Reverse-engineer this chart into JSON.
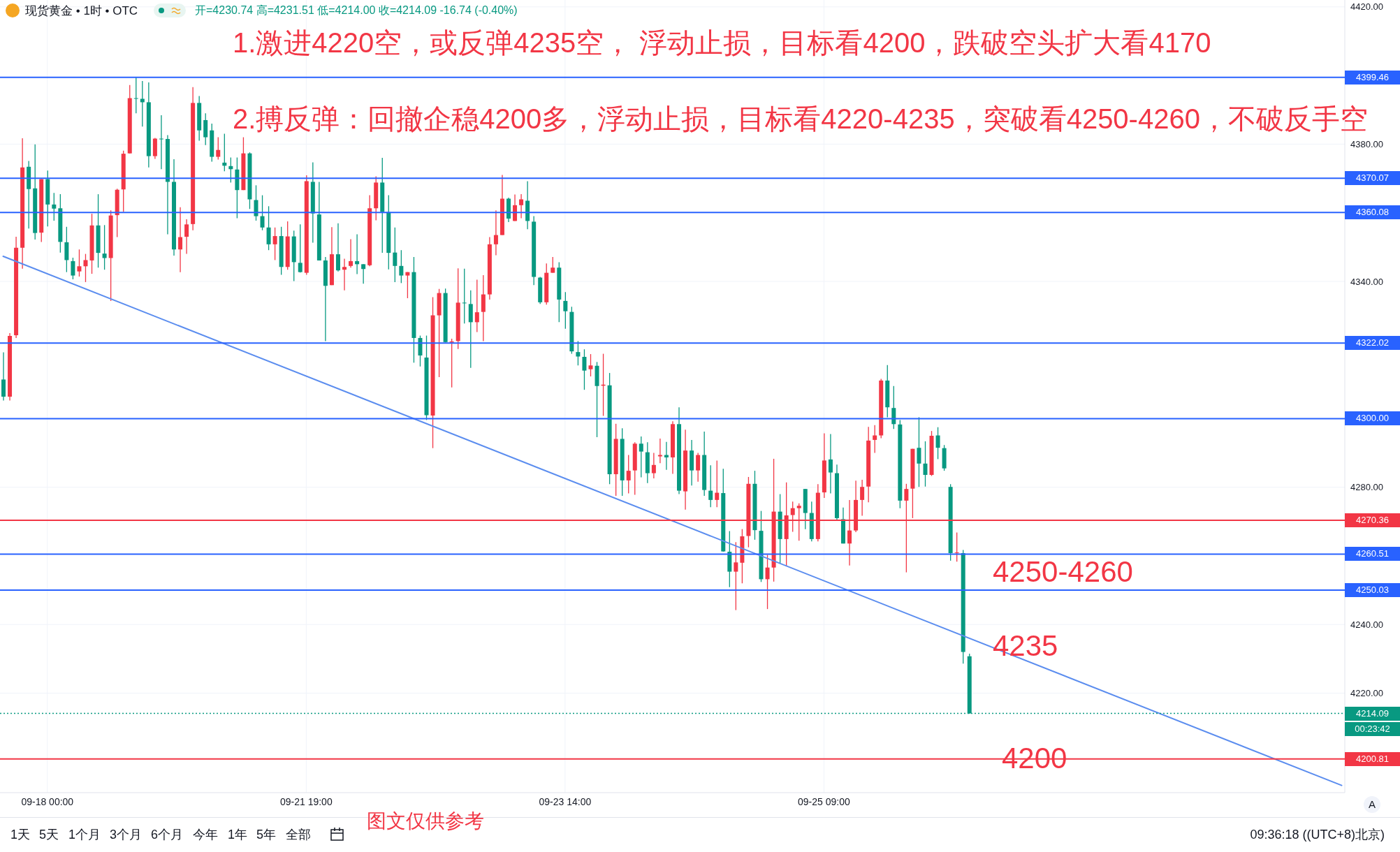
{
  "chart_data": {
    "type": "candlestick",
    "title": "现货黄金 • 1时 • OTC",
    "subtitle": "开=4230.74 高=4231.51 低=4214.00 收=4214.09 -16.74 (-0.40%)",
    "categories": [
      null,
      null,
      null,
      null,
      null,
      null,
      null,
      "09-18 00:00",
      null,
      null,
      null,
      null,
      null,
      null,
      null,
      null,
      null,
      null,
      null,
      null,
      null,
      null,
      null,
      null,
      null,
      null,
      null,
      null,
      null,
      null,
      null,
      null,
      null,
      null,
      null,
      null,
      null,
      null,
      null,
      null,
      null,
      null,
      null,
      null,
      null,
      null,
      null,
      null,
      "09-21 19:00",
      null,
      null,
      null,
      null,
      null,
      null,
      null,
      null,
      null,
      null,
      null,
      null,
      null,
      null,
      null,
      null,
      null,
      null,
      null,
      null,
      null,
      null,
      null,
      null,
      null,
      null,
      null,
      null,
      null,
      null,
      null,
      null,
      null,
      null,
      null,
      null,
      null,
      null,
      null,
      null,
      "09-23 14:00",
      null,
      null,
      null,
      null,
      null,
      null,
      null,
      null,
      null,
      null,
      null,
      null,
      null,
      null,
      null,
      null,
      null,
      null,
      null,
      null,
      null,
      null,
      null,
      null,
      null,
      null,
      null,
      null,
      null,
      null,
      null,
      null,
      null,
      null,
      null,
      null,
      null,
      null,
      null,
      null,
      "09-25 09:00",
      null,
      null,
      null,
      null,
      null,
      null,
      null,
      null,
      null,
      null,
      null,
      null,
      null,
      null,
      null,
      null,
      null,
      null,
      null,
      null,
      null,
      null,
      null,
      null,
      null,
      null,
      null,
      null,
      null,
      null,
      null,
      null,
      null,
      null,
      null,
      null,
      null,
      null,
      null,
      null,
      null,
      null,
      null,
      null,
      null,
      null,
      null,
      null,
      null,
      null,
      null,
      null,
      null,
      null,
      null,
      null,
      null,
      null,
      null,
      null,
      null,
      null,
      null,
      null,
      null,
      null,
      null,
      null,
      null,
      null,
      null,
      null,
      null,
      null,
      null,
      null,
      null,
      null,
      null,
      null,
      null,
      null
    ],
    "series": [
      {
        "type": "candlestick",
        "color": "#f23645",
        "ohlc": [
          null,
          [
            4306.4,
            4324.9,
            4305.3,
            4324.1
          ],
          [
            4324.3,
            4353.0,
            4323.5,
            4349.8
          ],
          [
            4349.8,
            4381.7,
            4343.7,
            4373.2
          ],
          null,
          null,
          [
            4354.2,
            4369.8,
            4351.5,
            4369.8
          ],
          null,
          null,
          null,
          null,
          null,
          [
            4342.9,
            4349.3,
            4341.4,
            4344.4
          ],
          [
            4344.4,
            4348.0,
            4339.8,
            4346.2
          ],
          [
            4346.1,
            4359.7,
            4342.2,
            4356.3
          ],
          null,
          null,
          [
            4346.8,
            4360.7,
            4334.3,
            4359.2
          ],
          [
            4359.3,
            4367.0,
            4352.9,
            4366.7
          ],
          [
            4366.8,
            4378.1,
            4360.3,
            4377.2
          ],
          [
            4377.3,
            4397.2,
            4377.3,
            4393.4
          ],
          null,
          null,
          null,
          [
            4376.5,
            4381.8,
            4375.7,
            4381.6
          ],
          null,
          null,
          null,
          [
            4349.3,
            4361.6,
            4342.7,
            4352.9
          ],
          [
            4353.0,
            4358.1,
            4348.0,
            4356.6
          ],
          [
            4356.7,
            4396.6,
            4354.9,
            4392.0
          ],
          null,
          null,
          null,
          [
            4376.3,
            4382.0,
            4375.5,
            4378.3
          ],
          null,
          null,
          null,
          [
            4366.6,
            4382.0,
            4366.6,
            4377.3
          ],
          null,
          null,
          null,
          null,
          [
            4350.8,
            4355.7,
            4346.2,
            4353.2
          ],
          null,
          [
            4344.2,
            4357.5,
            4343.4,
            4353.1
          ],
          null,
          null,
          [
            4342.5,
            4370.9,
            4341.9,
            4369.2
          ],
          null,
          null,
          null,
          [
            4338.9,
            4355.8,
            4338.9,
            4347.9
          ],
          null,
          [
            4343.4,
            4346.6,
            4337.4,
            4344.2
          ],
          [
            4344.5,
            4352.3,
            4344.0,
            4345.9
          ],
          null,
          null,
          [
            4344.7,
            4365.1,
            4344.4,
            4361.3
          ],
          [
            4361.3,
            4370.6,
            4357.8,
            4368.8
          ],
          null,
          null,
          null,
          null,
          [
            4341.7,
            4342.7,
            4335.1,
            4342.7
          ],
          null,
          null,
          null,
          [
            4300.9,
            4335.4,
            4291.4,
            4330.1
          ],
          [
            4330.1,
            4337.8,
            4312.1,
            4336.6
          ],
          null,
          [
            4322.2,
            4323.3,
            4309.1,
            4322.5
          ],
          [
            4322.6,
            4343.8,
            4320.3,
            4333.8
          ],
          null,
          null,
          [
            4328.1,
            4340.5,
            4325.2,
            4331.0
          ],
          [
            4331.1,
            4341.8,
            4322.6,
            4336.2
          ],
          [
            4336.2,
            4352.9,
            4334.7,
            4350.8
          ],
          [
            4350.8,
            4360.7,
            4347.6,
            4353.5
          ],
          [
            4353.5,
            4371.0,
            4353.5,
            4364.1
          ],
          null,
          [
            4357.6,
            4365.3,
            4357.6,
            4362.2
          ],
          [
            4362.2,
            4365.4,
            4358.4,
            4363.9
          ],
          null,
          null,
          null,
          [
            4333.9,
            4345.2,
            4333.2,
            4342.5
          ],
          [
            4342.5,
            4347.1,
            4342.5,
            4344.0
          ],
          null,
          null,
          null,
          null,
          null,
          [
            4314.4,
            4318.8,
            4312.3,
            4315.5
          ],
          null,
          [
            4309.6,
            4318.9,
            4300.8,
            4309.9
          ],
          null,
          [
            4283.8,
            4298.5,
            4277.5,
            4294.1
          ],
          null,
          [
            4282.0,
            4289.4,
            4278.2,
            4284.8
          ],
          [
            4284.9,
            4293.1,
            4277.8,
            4292.7
          ],
          null,
          null,
          [
            4284.1,
            4290.0,
            4282.6,
            4286.5
          ],
          [
            4289.0,
            4294.2,
            4287.0,
            4289.4
          ],
          null,
          [
            4288.7,
            4299.2,
            4283.9,
            4298.4
          ],
          null,
          [
            4278.8,
            4296.8,
            4273.5,
            4290.7
          ],
          null,
          [
            4284.9,
            4290.0,
            4281.6,
            4289.4
          ],
          null,
          null,
          [
            4276.3,
            4287.8,
            4274.2,
            4278.4
          ],
          null,
          null,
          [
            4255.4,
            4264.0,
            4244.2,
            4258.1
          ],
          [
            4258.0,
            4267.8,
            4252.0,
            4265.7
          ],
          [
            4265.8,
            4283.0,
            4262.5,
            4281.0
          ],
          null,
          null,
          [
            4253.2,
            4260.3,
            4244.5,
            4256.6
          ],
          [
            4256.6,
            4288.3,
            4252.5,
            4272.9
          ],
          null,
          [
            4264.9,
            4281.4,
            4257.1,
            4271.8
          ],
          [
            4271.9,
            4275.8,
            4267.0,
            4273.9
          ],
          [
            4273.9,
            4275.3,
            4264.4,
            4274.6
          ],
          null,
          null,
          [
            4264.9,
            4280.9,
            4264.2,
            4278.4
          ],
          [
            4278.5,
            4295.7,
            4276.9,
            4287.8
          ],
          null,
          null,
          null,
          [
            4263.6,
            4276.3,
            4257.2,
            4267.4
          ],
          [
            4267.4,
            4281.9,
            4266.9,
            4276.3
          ],
          [
            4276.3,
            4282.2,
            4271.7,
            4280.1
          ],
          [
            4280.2,
            4297.6,
            4275.6,
            4293.6
          ],
          [
            4293.8,
            4298.1,
            4290.0,
            4295.1
          ],
          [
            4295.1,
            4311.6,
            4294.3,
            4311.1
          ],
          null,
          null,
          null,
          [
            4276.1,
            4281.0,
            4255.2,
            4279.5
          ],
          [
            4279.6,
            4291.2,
            4271.0,
            4291.2
          ],
          null,
          null,
          [
            4283.6,
            4296.4,
            4283.3,
            4295.0
          ],
          null,
          null,
          null,
          [
            4260.8,
            4266.8,
            4258.3,
            4261.0
          ],
          null,
          null,
          null,
          null,
          null,
          null,
          null,
          null,
          null,
          null,
          null,
          null,
          null,
          null,
          null,
          null,
          null,
          null,
          null,
          null,
          null,
          null,
          null,
          null,
          null,
          null,
          null,
          null,
          null,
          null,
          null,
          null,
          null,
          null,
          null,
          null,
          null,
          null,
          null,
          null,
          null,
          null,
          null,
          null,
          null,
          null,
          null,
          null,
          null,
          null,
          null,
          null,
          null,
          null,
          null,
          null,
          null,
          null,
          null,
          null,
          null
        ]
      },
      {
        "type": "candlestick",
        "color": "#089981",
        "ohlc": [
          [
            4311.4,
            4319.3,
            4305.3,
            4306.4
          ],
          null,
          null,
          null,
          [
            4373.4,
            4375.1,
            4355.4,
            4366.9
          ],
          [
            4367.1,
            4379.9,
            4352.2,
            4354.1
          ],
          null,
          [
            4369.8,
            4372.3,
            4356.0,
            4362.4
          ],
          [
            4362.4,
            4365.8,
            4357.7,
            4361.2
          ],
          [
            4361.3,
            4365.4,
            4348.4,
            4351.5
          ],
          [
            4351.4,
            4355.9,
            4342.7,
            4346.2
          ],
          [
            4345.9,
            4346.9,
            4340.6,
            4341.7
          ],
          null,
          null,
          null,
          [
            4356.3,
            4365.4,
            4344.0,
            4348.3
          ],
          [
            4348.1,
            4356.4,
            4343.4,
            4346.8
          ],
          null,
          null,
          null,
          null,
          [
            4393.4,
            4399.4,
            4389.0,
            4393.2
          ],
          [
            4393.2,
            4398.4,
            4385.1,
            4392.2
          ],
          [
            4392.2,
            4398.0,
            4373.2,
            4376.5
          ],
          null,
          [
            4381.6,
            4388.4,
            4372.7,
            4381.5
          ],
          [
            4381.5,
            4382.6,
            4353.7,
            4369.0
          ],
          [
            4369.0,
            4375.6,
            4347.5,
            4349.3
          ],
          null,
          null,
          null,
          [
            4392.0,
            4394.0,
            4381.0,
            4384.0
          ],
          [
            4387.0,
            4389.0,
            4379.7,
            4382.0
          ],
          [
            4384.0,
            4386.0,
            4374.9,
            4376.3
          ],
          null,
          [
            4374.6,
            4383.0,
            4372.1,
            4373.7
          ],
          [
            4373.6,
            4376.1,
            4368.8,
            4372.7
          ],
          [
            4372.6,
            4376.1,
            4358.4,
            4366.6
          ],
          null,
          [
            4377.3,
            4377.6,
            4361.1,
            4363.9
          ],
          [
            4363.7,
            4368.0,
            4357.7,
            4359.0
          ],
          [
            4359.0,
            4365.1,
            4354.9,
            4355.7
          ],
          [
            4355.7,
            4361.9,
            4349.1,
            4350.8
          ],
          null,
          [
            4353.2,
            4355.9,
            4341.9,
            4344.2
          ],
          null,
          [
            4353.1,
            4354.8,
            4340.1,
            4345.6
          ],
          [
            4345.4,
            4356.6,
            4342.6,
            4342.7
          ],
          null,
          [
            4369.0,
            4374.7,
            4351.3,
            4359.8
          ],
          [
            4359.5,
            4369.0,
            4346.1,
            4346.1
          ],
          [
            4346.1,
            4347.1,
            4322.6,
            4338.7
          ],
          null,
          [
            4347.9,
            4356.9,
            4342.9,
            4343.2
          ],
          null,
          null,
          [
            4345.9,
            4353.7,
            4342.1,
            4345.0
          ],
          [
            4345.0,
            4345.0,
            4339.3,
            4343.6
          ],
          null,
          null,
          [
            4368.8,
            4376.0,
            4348.3,
            4360.2
          ],
          [
            4360.2,
            4365.1,
            4343.5,
            4348.3
          ],
          [
            4348.4,
            4355.7,
            4339.8,
            4344.5
          ],
          [
            4344.5,
            4349.1,
            4339.5,
            4341.7
          ],
          null,
          [
            4342.7,
            4347.1,
            4316.3,
            4323.5
          ],
          [
            4323.5,
            4324.2,
            4315.2,
            4318.4
          ],
          [
            4317.8,
            4324.2,
            4299.6,
            4301.0
          ],
          null,
          null,
          [
            4336.6,
            4337.9,
            4322.2,
            4322.3
          ],
          null,
          null,
          [
            4333.8,
            4343.7,
            4327.7,
            4333.6
          ],
          [
            4333.4,
            4337.4,
            4314.8,
            4328.1
          ],
          null,
          null,
          null,
          null,
          null,
          [
            4364.1,
            4364.4,
            4357.3,
            4358.3
          ],
          null,
          null,
          [
            4363.5,
            4369.2,
            4355.2,
            4357.6
          ],
          [
            4357.4,
            4359.0,
            4338.9,
            4341.3
          ],
          [
            4341.1,
            4341.3,
            4333.4,
            4333.9
          ],
          null,
          null,
          [
            4344.0,
            4345.6,
            4328.1,
            4334.7
          ],
          [
            4334.3,
            4336.9,
            4326.2,
            4331.3
          ],
          [
            4331.1,
            4332.6,
            4318.9,
            4319.6
          ],
          [
            4319.4,
            4322.6,
            4315.5,
            4318.1
          ],
          [
            4318.0,
            4320.2,
            4308.4,
            4314.0
          ],
          null,
          [
            4315.4,
            4316.5,
            4294.6,
            4309.5
          ],
          null,
          [
            4309.7,
            4313.3,
            4280.9,
            4283.8
          ],
          null,
          [
            4294.1,
            4297.2,
            4277.5,
            4282.0
          ],
          null,
          null,
          [
            4292.7,
            4294.8,
            4282.9,
            4290.4
          ],
          [
            4290.2,
            4293.1,
            4281.2,
            4284.1
          ],
          null,
          null,
          [
            4289.4,
            4293.2,
            4285.1,
            4288.7
          ],
          null,
          [
            4298.4,
            4303.3,
            4278.0,
            4279.0
          ],
          null,
          [
            4290.7,
            4293.8,
            4280.5,
            4284.9
          ],
          null,
          [
            4289.4,
            4296.2,
            4277.5,
            4279.2
          ],
          [
            4279.0,
            4286.4,
            4274.2,
            4276.3
          ],
          null,
          [
            4278.3,
            4285.4,
            4261.2,
            4261.3
          ],
          [
            4261.2,
            4267.2,
            4250.9,
            4255.4
          ],
          null,
          null,
          null,
          [
            4281.0,
            4284.8,
            4264.7,
            4267.5
          ],
          [
            4267.3,
            4273.1,
            4252.4,
            4253.2
          ],
          null,
          null,
          [
            4272.9,
            4278.0,
            4257.8,
            4264.9
          ],
          null,
          null,
          null,
          [
            4279.5,
            4279.5,
            4267.8,
            4272.5
          ],
          [
            4272.5,
            4275.8,
            4264.2,
            4264.9
          ],
          null,
          null,
          [
            4288.1,
            4295.5,
            4278.2,
            4284.3
          ],
          [
            4284.1,
            4286.6,
            4270.3,
            4271.0
          ],
          [
            4270.7,
            4274.1,
            4263.6,
            4263.6
          ],
          null,
          null,
          null,
          null,
          null,
          null,
          [
            4311.1,
            4315.6,
            4300.4,
            4303.3
          ],
          [
            4303.1,
            4309.5,
            4297.0,
            4298.4
          ],
          [
            4298.3,
            4299.6,
            4273.9,
            4276.1
          ],
          null,
          null,
          [
            4291.5,
            4300.4,
            4280.1,
            4286.9
          ],
          [
            4286.9,
            4293.4,
            4280.2,
            4283.6
          ],
          null,
          [
            4295.1,
            4297.5,
            4288.2,
            4291.5
          ],
          [
            4291.4,
            4292.3,
            4284.8,
            4285.5
          ],
          [
            4280.1,
            4280.9,
            4258.6,
            4260.8
          ],
          null,
          [
            4260.8,
            4261.7,
            4228.6,
            4232.0
          ],
          [
            4230.74,
            4231.51,
            4214.0,
            4214.09
          ],
          null,
          null,
          null,
          null,
          null,
          null,
          null,
          null,
          null,
          null,
          null,
          null,
          null,
          null,
          null,
          null,
          null,
          null,
          null,
          null,
          null,
          null,
          null,
          null,
          null,
          null,
          null,
          null,
          null,
          null,
          null,
          null,
          null,
          null,
          null,
          null,
          null,
          null,
          null,
          null,
          null,
          null,
          null,
          null,
          null,
          null,
          null,
          null,
          null,
          null,
          null,
          null,
          null,
          null,
          null,
          null,
          null,
          null,
          null
        ]
      },
      {
        "type": "line",
        "color": "#5b8def",
        "values": [
          4347.3,
          null,
          null,
          null,
          null,
          null,
          null,
          null,
          null,
          null,
          null,
          null,
          null,
          null,
          null,
          null,
          null,
          null,
          null,
          null,
          null,
          null,
          null,
          null,
          null,
          null,
          null,
          null,
          null,
          null,
          null,
          null,
          null,
          null,
          null,
          null,
          null,
          null,
          null,
          null,
          null,
          null,
          null,
          null,
          null,
          null,
          null,
          null,
          null,
          null,
          null,
          null,
          null,
          null,
          null,
          null,
          null,
          null,
          null,
          null,
          null,
          null,
          null,
          null,
          null,
          null,
          null,
          null,
          null,
          null,
          null,
          null,
          null,
          null,
          null,
          null,
          null,
          null,
          null,
          null,
          null,
          null,
          null,
          null,
          null,
          null,
          null,
          null,
          null,
          null,
          null,
          null,
          null,
          null,
          null,
          null,
          null,
          null,
          null,
          null,
          null,
          null,
          null,
          null,
          null,
          null,
          null,
          null,
          null,
          null,
          null,
          null,
          null,
          null,
          null,
          null,
          null,
          null,
          null,
          null,
          null,
          null,
          null,
          null,
          null,
          null,
          null,
          null,
          null,
          null,
          null,
          null,
          null,
          null,
          null,
          null,
          null,
          null,
          null,
          null,
          null,
          null,
          null,
          null,
          null,
          null,
          null,
          null,
          null,
          null,
          null,
          null,
          null,
          null,
          null,
          null,
          null,
          null,
          null,
          null,
          null,
          null,
          null,
          null,
          null,
          null,
          null,
          null,
          null,
          null,
          null,
          null,
          null,
          null,
          null,
          null,
          null,
          null,
          null,
          null,
          null,
          null,
          null,
          null,
          null,
          null,
          null,
          null,
          null,
          null,
          null,
          null,
          null,
          null,
          null,
          null,
          null,
          null,
          null,
          null,
          null,
          null,
          null,
          null,
          null,
          null,
          null,
          null,
          null,
          null,
          null,
          null,
          4193.1
        ]
      }
    ],
    "ylim": [
      4191,
      4422
    ],
    "yticks": [
      {
        "value": 4220,
        "label": "4220.00"
      },
      {
        "value": 4240,
        "label": "4240.00"
      },
      {
        "value": 4280,
        "label": "4280.00"
      },
      {
        "value": 4340,
        "label": "4340.00"
      },
      {
        "value": 4380,
        "label": "4380.00"
      },
      {
        "value": 4420,
        "label": "4420.00"
      }
    ],
    "grid": true,
    "ref_lines": [
      {
        "axis": "y",
        "value": 4399.46,
        "label": "4399.46",
        "color": "#2962ff"
      },
      {
        "axis": "y",
        "value": 4370.07,
        "label": "4370.07",
        "color": "#2962ff"
      },
      {
        "axis": "y",
        "value": 4360.08,
        "label": "4360.08",
        "color": "#2962ff"
      },
      {
        "axis": "y",
        "value": 4322.02,
        "label": "4322.02",
        "color": "#2962ff"
      },
      {
        "axis": "y",
        "value": 4300.0,
        "label": "4300.00",
        "color": "#2962ff"
      },
      {
        "axis": "y",
        "value": 4270.36,
        "label": "4270.36",
        "color": "#f23645"
      },
      {
        "axis": "y",
        "value": 4260.51,
        "label": "4260.51",
        "color": "#2962ff"
      },
      {
        "axis": "y",
        "value": 4250.03,
        "label": "4250.03",
        "color": "#2962ff"
      },
      {
        "axis": "y",
        "value": 4214.09,
        "label": "4214.09",
        "color": "#089981",
        "line_style": "dotted"
      },
      {
        "axis": "y",
        "value": 4200.81,
        "label": "4200.81",
        "color": "#f23645"
      }
    ],
    "annotations": [
      "1.激进4220空，或反弹4235空， 浮动止损，目标看4200，跌破空头扩大看4170",
      "2.搏反弹：回撤企稳4200多，浮动止损，目标看4220-4235，突破看4250-4260，不破反手空",
      "4250-4260",
      "4235",
      "4200",
      "图文仅供参考",
      "00:23:42",
      "1天",
      "5天",
      "1个月",
      "3个月",
      "6个月",
      "今年",
      "1年",
      "5年",
      "全部",
      "09:36:18 ((UTC+8)北京)",
      "A"
    ]
  }
}
